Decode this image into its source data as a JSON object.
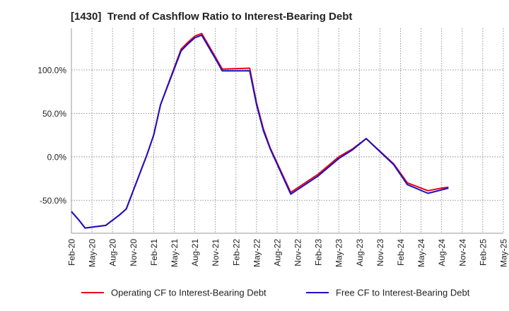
{
  "chart_data": {
    "type": "line",
    "title": "[1430]  Trend of Cashflow Ratio to Interest-Bearing Debt",
    "xlabel": "",
    "ylabel": "",
    "x_tick_labels": [
      "Feb-20",
      "May-20",
      "Aug-20",
      "Nov-20",
      "Feb-21",
      "May-21",
      "Aug-21",
      "Nov-21",
      "Feb-22",
      "May-22",
      "Aug-22",
      "Nov-22",
      "Feb-23",
      "May-23",
      "Aug-23",
      "Nov-23",
      "Feb-24",
      "May-24",
      "Aug-24",
      "Nov-24",
      "Feb-25",
      "May-25"
    ],
    "y_ticks": [
      100,
      50,
      0,
      -50
    ],
    "y_tick_labels": [
      "100.0%",
      "50.0%",
      "0.0%",
      "-50.0%"
    ],
    "ylim": [
      -88,
      148
    ],
    "grid": true,
    "legend_position": "bottom",
    "series": [
      {
        "name": "Operating CF to Interest-Bearing Debt",
        "color": "#e8001c",
        "points": [
          [
            "2020-02",
            -63
          ],
          [
            "2020-03",
            -72
          ],
          [
            "2020-04",
            -82
          ],
          [
            "2020-07",
            -79
          ],
          [
            "2020-09",
            -67
          ],
          [
            "2020-10",
            -60
          ],
          [
            "2021-01",
            2
          ],
          [
            "2021-02",
            25
          ],
          [
            "2021-03",
            60
          ],
          [
            "2021-06",
            124
          ],
          [
            "2021-07",
            132
          ],
          [
            "2021-08",
            139
          ],
          [
            "2021-09",
            142
          ],
          [
            "2021-11",
            115
          ],
          [
            "2021-12",
            101
          ],
          [
            "2022-04",
            102
          ],
          [
            "2022-05",
            62
          ],
          [
            "2022-06",
            32
          ],
          [
            "2022-07",
            10
          ],
          [
            "2022-10",
            -41
          ],
          [
            "2023-02",
            -20
          ],
          [
            "2023-05",
            0
          ],
          [
            "2023-07",
            9
          ],
          [
            "2023-09",
            21
          ],
          [
            "2024-01",
            -8
          ],
          [
            "2024-03",
            -30
          ],
          [
            "2024-06",
            -39
          ],
          [
            "2024-08",
            -36
          ],
          [
            "2024-09",
            -35
          ]
        ]
      },
      {
        "name": "Free CF to Interest-Bearing Debt",
        "color": "#1a12c0",
        "points": [
          [
            "2020-02",
            -63
          ],
          [
            "2020-03",
            -72
          ],
          [
            "2020-04",
            -82
          ],
          [
            "2020-07",
            -79
          ],
          [
            "2020-09",
            -67
          ],
          [
            "2020-10",
            -60
          ],
          [
            "2021-01",
            2
          ],
          [
            "2021-02",
            25
          ],
          [
            "2021-03",
            60
          ],
          [
            "2021-06",
            122
          ],
          [
            "2021-07",
            130
          ],
          [
            "2021-08",
            137
          ],
          [
            "2021-09",
            140
          ],
          [
            "2021-11",
            113
          ],
          [
            "2021-12",
            99
          ],
          [
            "2022-04",
            99
          ],
          [
            "2022-05",
            60
          ],
          [
            "2022-06",
            30
          ],
          [
            "2022-07",
            9
          ],
          [
            "2022-10",
            -43
          ],
          [
            "2023-02",
            -22
          ],
          [
            "2023-05",
            -2
          ],
          [
            "2023-07",
            8
          ],
          [
            "2023-09",
            21
          ],
          [
            "2024-01",
            -9
          ],
          [
            "2024-03",
            -32
          ],
          [
            "2024-06",
            -42
          ],
          [
            "2024-08",
            -38
          ],
          [
            "2024-09",
            -36
          ]
        ]
      }
    ]
  }
}
